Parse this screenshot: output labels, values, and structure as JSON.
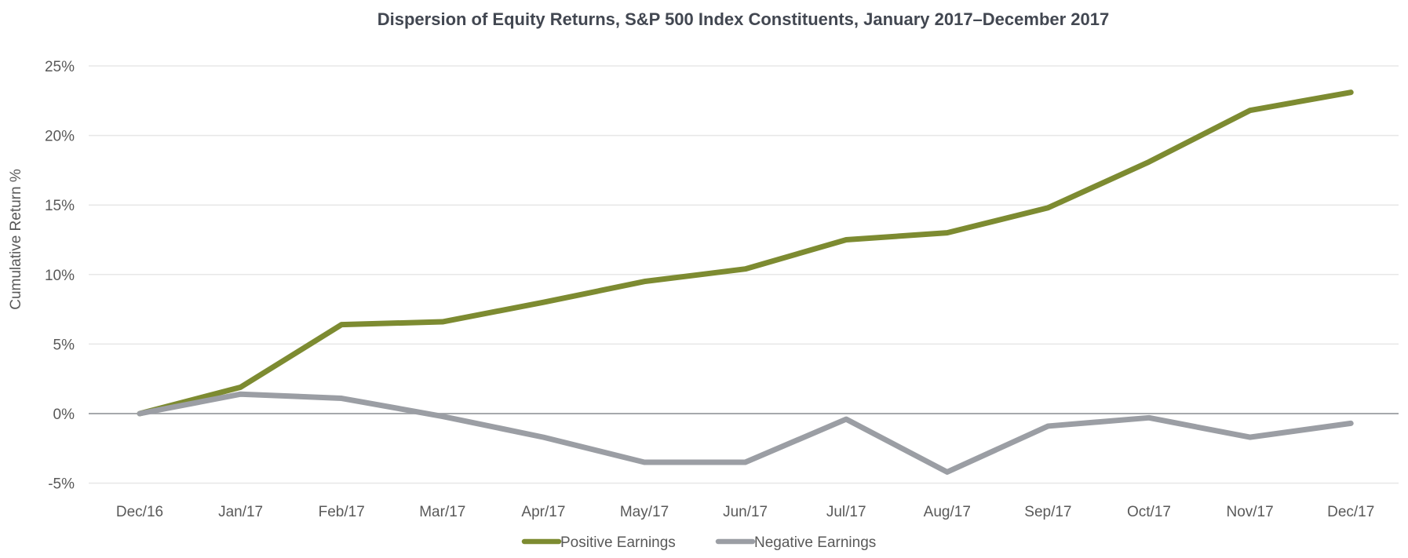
{
  "chart_data": {
    "type": "line",
    "title": "Dispersion of Equity Returns, S&P 500 Index Constituents, January 2017–December 2017",
    "ylabel": "Cumulative Return %",
    "xlabel": "",
    "categories": [
      "Dec/16",
      "Jan/17",
      "Feb/17",
      "Mar/17",
      "Apr/17",
      "May/17",
      "Jun/17",
      "Jul/17",
      "Aug/17",
      "Sep/17",
      "Oct/17",
      "Nov/17",
      "Dec/17"
    ],
    "series": [
      {
        "name": "Positive Earnings",
        "color": "#7d8b31",
        "values": [
          0.0,
          1.9,
          6.4,
          6.6,
          8.0,
          9.5,
          10.4,
          12.5,
          13.0,
          14.8,
          18.1,
          21.8,
          23.1
        ]
      },
      {
        "name": "Negative Earnings",
        "color": "#9b9ea4",
        "values": [
          0.0,
          1.4,
          1.1,
          -0.2,
          -1.7,
          -3.5,
          -3.5,
          -0.4,
          -4.2,
          -0.9,
          -0.3,
          -1.7,
          -0.7
        ]
      }
    ],
    "y_ticks": [
      25,
      20,
      15,
      10,
      5,
      0,
      -5
    ],
    "y_tick_labels": [
      "25%",
      "20%",
      "15%",
      "10%",
      "5%",
      "0%",
      "-5%"
    ],
    "ylim": [
      -6.5,
      26.5
    ],
    "grid": true,
    "legend_position": "bottom",
    "colors": {
      "title_text": "#424751",
      "axis_text": "#595959",
      "gridline": "#e7e7e7",
      "zero_line": "#9a9da1",
      "background": "#ffffff"
    }
  }
}
